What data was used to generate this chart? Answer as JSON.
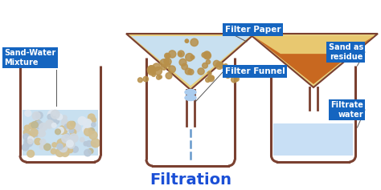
{
  "title": "Filtration",
  "title_color": "#1a4fd6",
  "title_fontsize": 14,
  "bg_color": "#ffffff",
  "label_bg_color": "#1565c0",
  "label_text_color": "#ffffff",
  "beaker_color": "#7a4030",
  "beaker_lw": 2.2,
  "mixture_color": "#c8e0f0",
  "sand_dot_color": "#c8a868",
  "filter_paper_color": "#e8d080",
  "sand_residue_color": "#c86820",
  "filtrate_color": "#c8dff5",
  "stem_color": "#7a4030",
  "drip_color": "#6699cc",
  "labels": {
    "sand_water": "Sand-Water\nMixture",
    "filter_paper": "Filter Paper",
    "filter_funnel": "Filter Funnel",
    "sand_residue": "Sand as\nresidue",
    "filtrate_water": "Filtrate\nwater"
  }
}
